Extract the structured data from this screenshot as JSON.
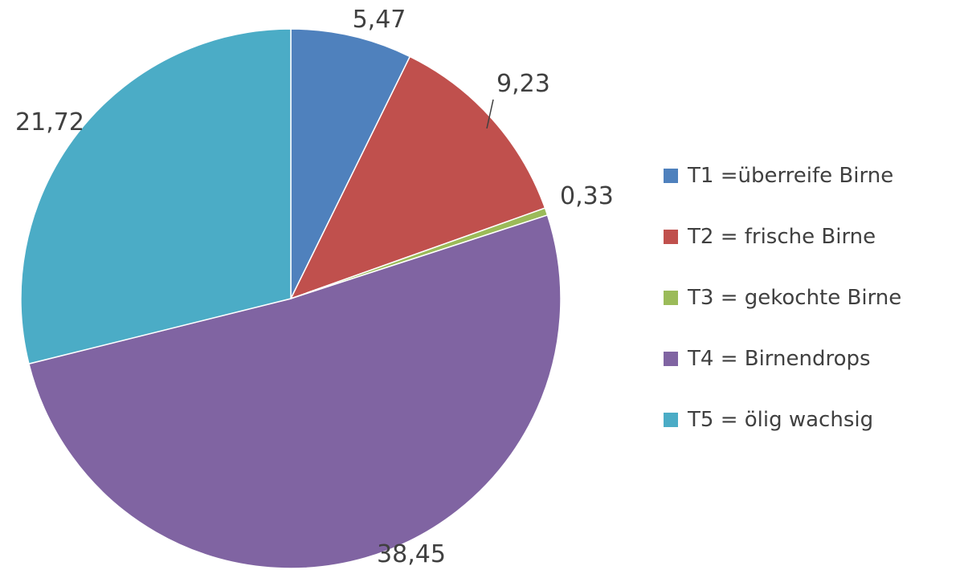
{
  "chart_data": {
    "type": "pie",
    "title": "",
    "slices": [
      {
        "label": "T1 =überreife Birne",
        "value": 5.47,
        "value_label": "5,47",
        "color": "#4F81BD"
      },
      {
        "label": "T2 = frische Birne",
        "value": 9.23,
        "value_label": "9,23",
        "color": "#C0504D"
      },
      {
        "label": "T3 = gekochte Birne",
        "value": 0.33,
        "value_label": "0,33",
        "color": "#9BBB59"
      },
      {
        "label": "T4 = Birnendrops",
        "value": 38.45,
        "value_label": "38,45",
        "color": "#8064A2"
      },
      {
        "label": "T5 = ölig wachsig",
        "value": 21.72,
        "value_label": "21,72",
        "color": "#4BACC6"
      }
    ],
    "start_angle": "12 o'clock",
    "direction": "clockwise",
    "legend_position": "right"
  }
}
